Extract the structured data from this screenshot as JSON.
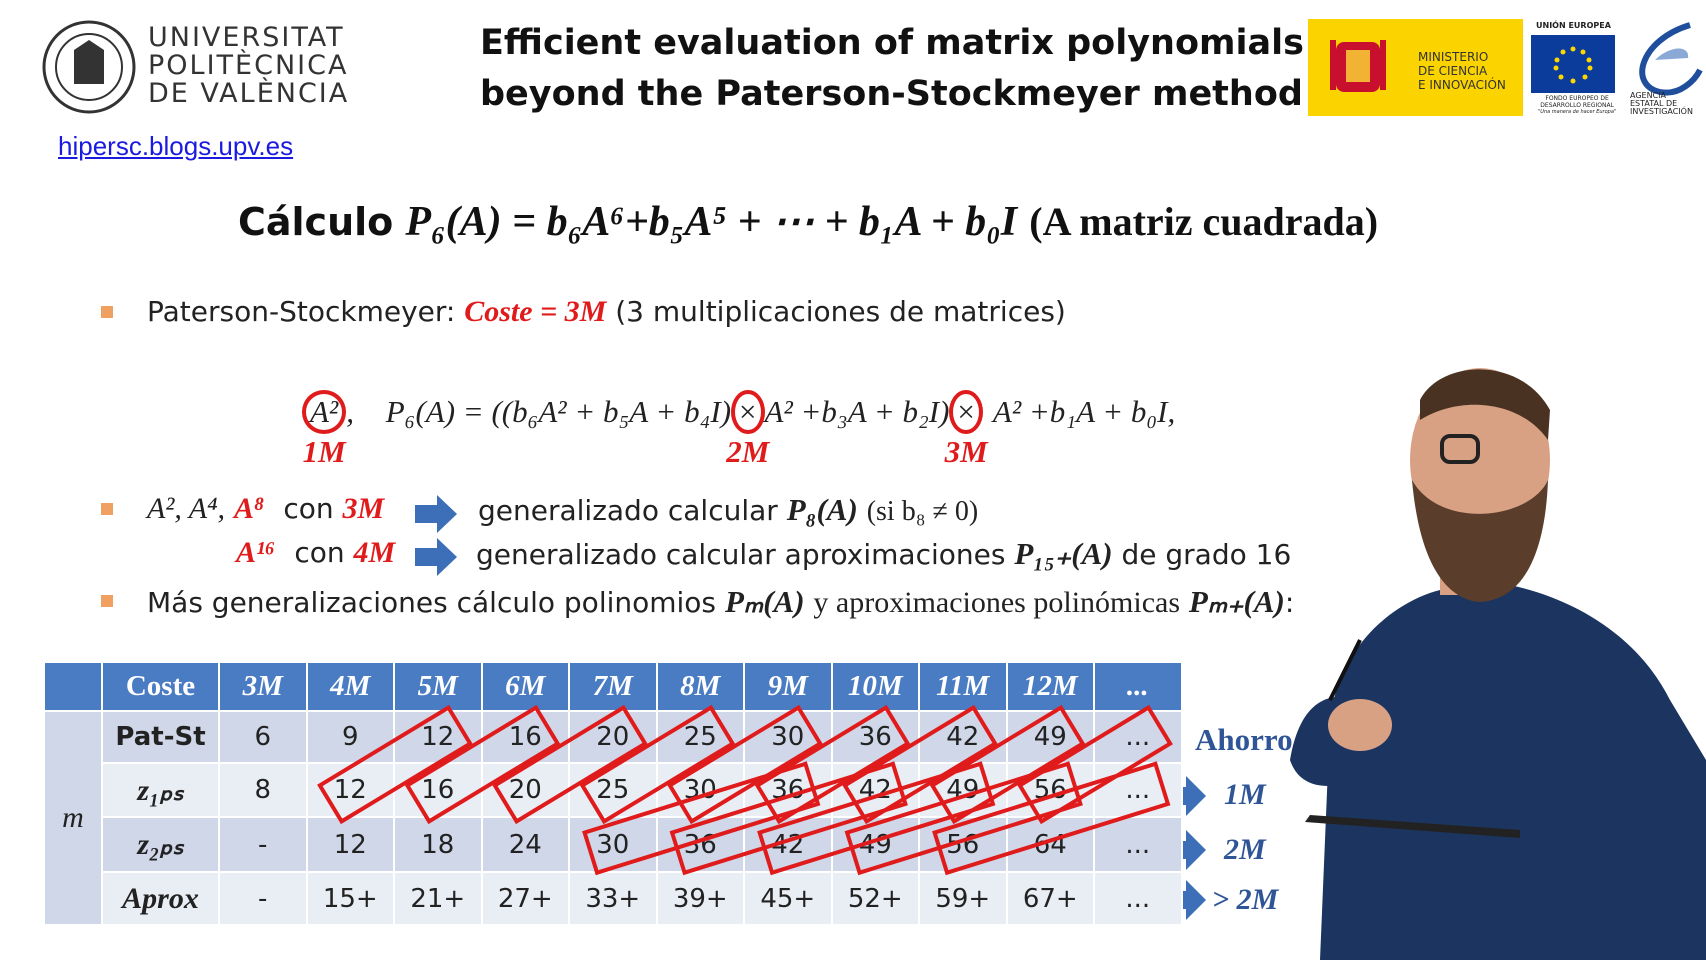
{
  "header": {
    "university": [
      "UNIVERSITAT",
      "POLITÈCNICA",
      "DE VALÈNCIA"
    ],
    "title": [
      "Efficient evaluation of matrix polynomials",
      "beyond the Paterson-Stockmeyer method"
    ],
    "ministry": [
      "MINISTERIO",
      "DE CIENCIA",
      "E INNOVACIÓN"
    ],
    "eu": {
      "top": "UNIÓN EUROPEA",
      "fund": [
        "FONDO EUROPEO DE",
        "DESARROLLO REGIONAL"
      ],
      "motto": "\"Una manera de hacer Europa\""
    },
    "agency": [
      "AGENCIA",
      "ESTATAL DE",
      "INVESTIGACIÓN"
    ],
    "link": "hipersc.blogs.upv.es"
  },
  "heading": {
    "label": "Cálculo",
    "formula": "P₆(A) = b₆A⁶+b₅A⁵ + ⋯ + b₁A + b₀I",
    "note": "(A matriz cuadrada)"
  },
  "bullet1": {
    "lead": "Paterson-Stockmeyer:",
    "cost": "Coste = 3M",
    "rest": "(3 multiplicaciones de matrices)"
  },
  "formula": {
    "square": "A²",
    "comma": ",",
    "p6": "P₆(A) = ((b₆A² + b₅A + b₄I)",
    "times1": "×",
    "mid": "A² +b₃A + b₂I)",
    "times2": "×",
    "end": "A² +b₁A + b₀I,",
    "labels": [
      "1M",
      "2M",
      "3M"
    ]
  },
  "bullet2": {
    "line1": {
      "powers": "A², A⁴,",
      "highlight": "A⁸",
      "con": "con",
      "cost": "3M",
      "text": "generalizado calcular",
      "poly": "P₈(A)",
      "cond": "(si b₈ ≠ 0)"
    },
    "line2": {
      "highlight": "A¹⁶",
      "con": "con",
      "cost": "4M",
      "text": "generalizado calcular aproximaciones",
      "poly": "P₁₅₊(A)",
      "rest": "de grado 16"
    }
  },
  "bullet3": {
    "text": "Más generalizaciones cálculo polinomios",
    "poly": "Pₘ(A)",
    "mid": "y aproximaciones polinómicas",
    "poly2": "Pₘ₊(A)",
    "end": ":"
  },
  "table": {
    "header": "Coste",
    "costs": [
      "3M",
      "4M",
      "5M",
      "6M",
      "7M",
      "8M",
      "9M",
      "10M",
      "11M",
      "12M",
      "..."
    ],
    "group": "m",
    "rows": [
      {
        "label": "Pat-St",
        "cells": [
          "6",
          "9",
          "12",
          "16",
          "20",
          "25",
          "30",
          "36",
          "42",
          "49",
          "..."
        ]
      },
      {
        "label": "z₁ₚₛ",
        "cells": [
          "8",
          "12",
          "16",
          "20",
          "25",
          "30",
          "36",
          "42",
          "49",
          "56",
          "..."
        ]
      },
      {
        "label": "z₂ₚₛ",
        "cells": [
          "-",
          "12",
          "18",
          "24",
          "30",
          "36",
          "42",
          "49",
          "56",
          "64",
          "..."
        ]
      },
      {
        "label": "Aprox",
        "cells": [
          "-",
          "15+",
          "21+",
          "27+",
          "33+",
          "39+",
          "45+",
          "52+",
          "59+",
          "67+",
          "..."
        ]
      }
    ]
  },
  "savings": {
    "title": "Ahorro",
    "items": [
      "1M",
      "2M",
      "> 2M"
    ]
  }
}
